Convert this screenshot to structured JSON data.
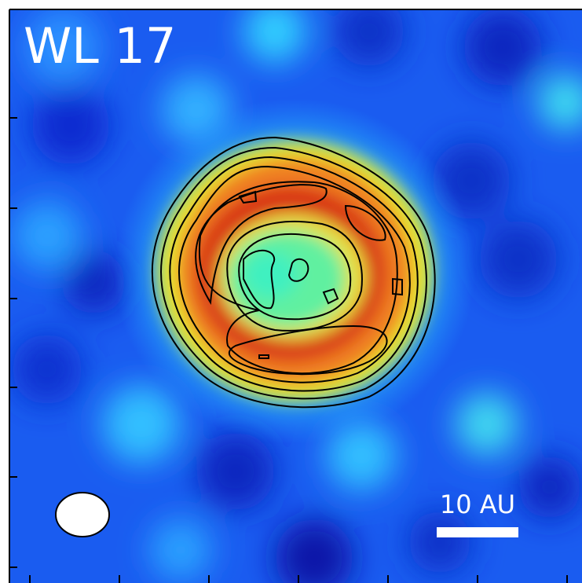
{
  "label": "WL 17",
  "scale_bar": {
    "label": "10 AU"
  }
}
